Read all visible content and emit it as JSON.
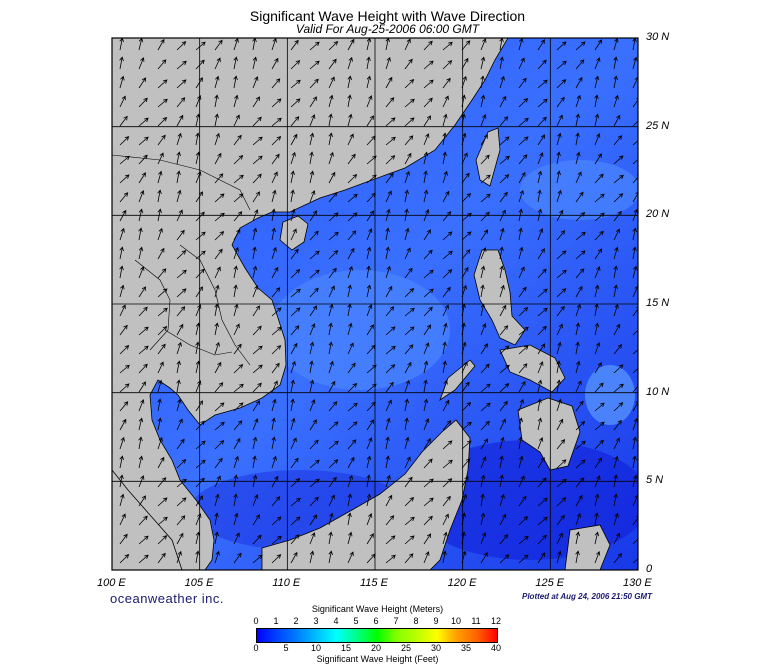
{
  "title": "Significant Wave Height with Wave Direction",
  "subtitle": "Valid For Aug-25-2006 06:00 GMT",
  "lat_labels": [
    "30 N",
    "25 N",
    "20 N",
    "15 N",
    "10 N",
    "5 N",
    "0"
  ],
  "lat_values": [
    30,
    25,
    20,
    15,
    10,
    5,
    0
  ],
  "lon_labels": [
    "100 E",
    "105 E",
    "110 E",
    "115 E",
    "120 E",
    "125 E",
    "130 E"
  ],
  "lon_values": [
    100,
    105,
    110,
    115,
    120,
    125,
    130
  ],
  "map_extent": {
    "lon": [
      100,
      130
    ],
    "lat": [
      0,
      30
    ]
  },
  "brand": "oceanweather inc.",
  "plotted": "Plotted at Aug 24, 2006 21:50 GMT",
  "colorbar": {
    "meters_title": "Significant Wave Height (Meters)",
    "feet_title": "Significant Wave Height (Feet)",
    "meters_ticks": [
      "0",
      "1",
      "2",
      "3",
      "4",
      "5",
      "6",
      "7",
      "8",
      "9",
      "10",
      "11",
      "12"
    ],
    "feet_ticks": [
      "0",
      "5",
      "10",
      "15",
      "20",
      "25",
      "30",
      "35",
      "40"
    ]
  },
  "colors": {
    "land": "#c0c0c0",
    "sea_dark": "#1530e0",
    "sea_mid": "#2a60ff",
    "sea_light": "#4a80ff"
  },
  "wave_direction_deg": 60
}
